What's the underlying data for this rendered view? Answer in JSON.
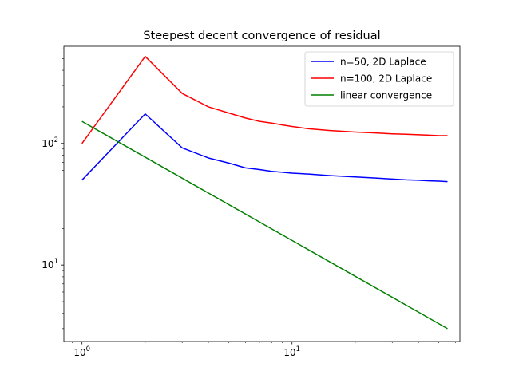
{
  "chart_data": {
    "type": "line",
    "title": "Steepest decent convergence of residual",
    "xlabel": "",
    "ylabel": "",
    "xscale": "log",
    "yscale": "log",
    "xlim": [
      0.82,
      63
    ],
    "ylim": [
      2.35,
      630
    ],
    "grid": false,
    "legend_position": "top-right",
    "x_ticks": [
      {
        "value": 1,
        "base": "10",
        "exp": "0"
      },
      {
        "value": 10,
        "base": "10",
        "exp": "1"
      }
    ],
    "y_ticks": [
      {
        "value": 10,
        "base": "10",
        "exp": "1"
      },
      {
        "value": 100,
        "base": "10",
        "exp": "2"
      }
    ],
    "series": [
      {
        "name": "n=50, 2D Laplace",
        "color": "#0000ff",
        "x": [
          1,
          2,
          3,
          4,
          5,
          6,
          7,
          8,
          9,
          10,
          12,
          15,
          20,
          25,
          30,
          35,
          40,
          45,
          50,
          55
        ],
        "y": [
          50,
          175,
          92,
          76,
          69,
          63,
          61,
          59,
          58,
          57,
          56,
          54.5,
          53,
          52,
          51,
          50.2,
          49.8,
          49.3,
          49,
          48.5
        ]
      },
      {
        "name": "n=100, 2D Laplace",
        "color": "#ff0000",
        "x": [
          1,
          2,
          3,
          4,
          5,
          6,
          7,
          8,
          9,
          10,
          11,
          12,
          15,
          20,
          25,
          30,
          35,
          40,
          45,
          50,
          55
        ],
        "y": [
          100,
          520,
          258,
          200,
          178,
          162,
          152,
          147,
          142,
          138,
          135,
          132,
          128,
          124,
          122,
          120,
          119,
          118,
          117,
          116,
          116
        ]
      },
      {
        "name": "linear convergence",
        "color": "#008000",
        "x": [
          1,
          55
        ],
        "y": [
          152,
          3.0
        ]
      }
    ]
  }
}
